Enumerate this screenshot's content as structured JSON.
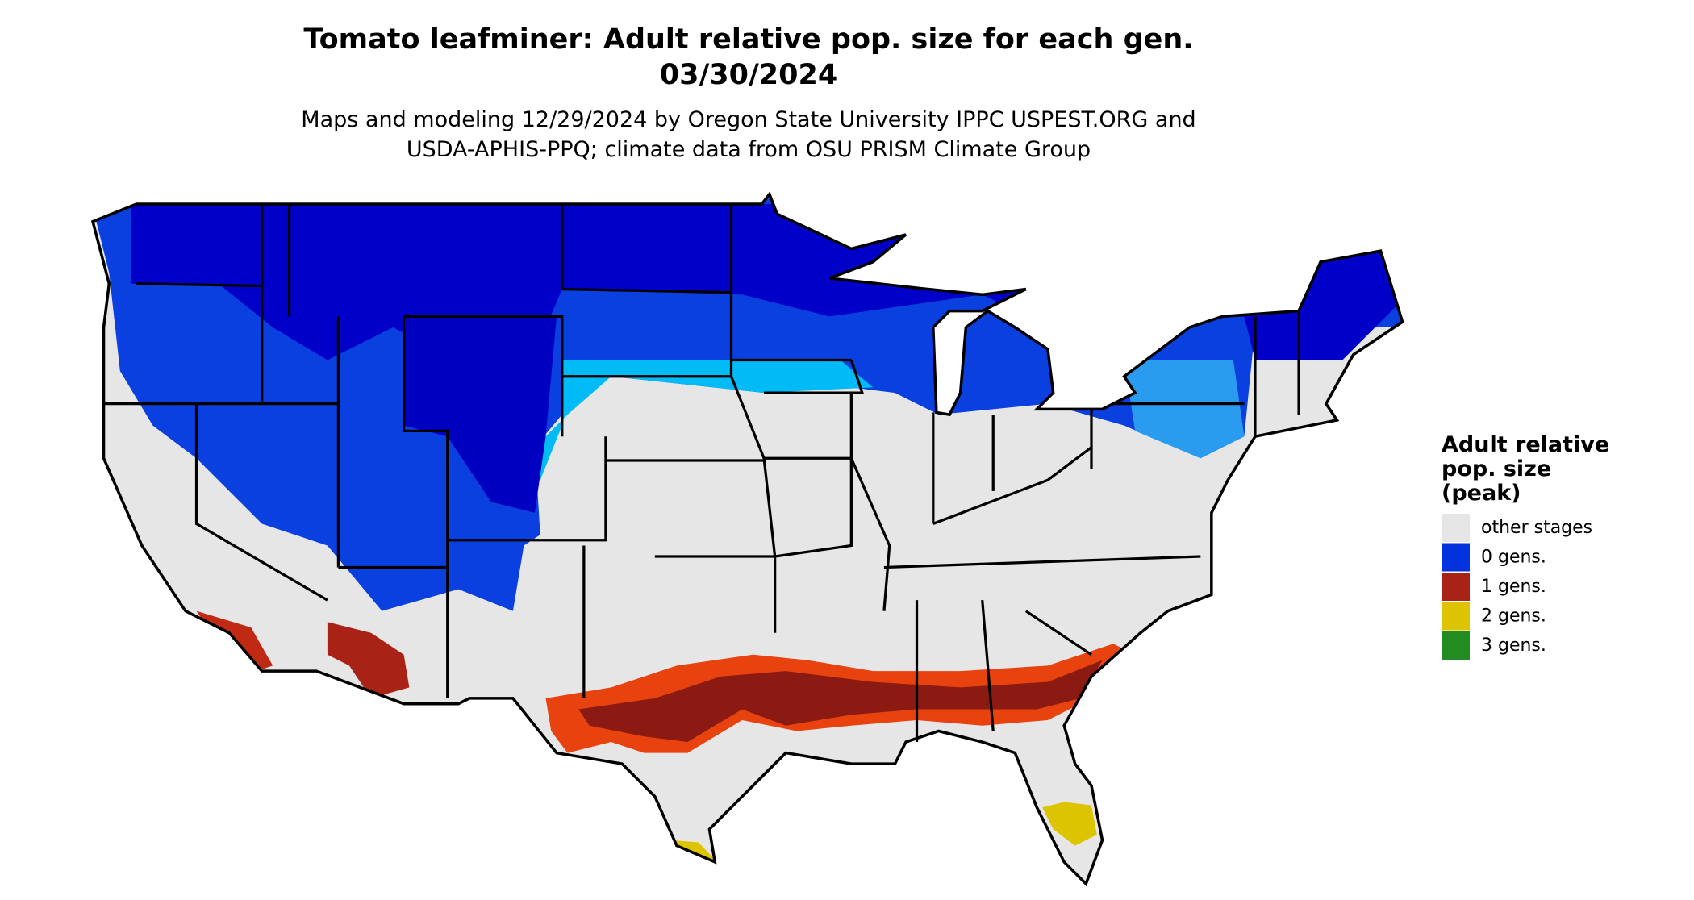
{
  "header": {
    "title": [
      "Tomato leafminer: Adult relative pop. size for each gen.",
      "03/30/2024"
    ],
    "subtitle": [
      "Maps and modeling 12/29/2024 by Oregon State University IPPC USPEST.ORG and",
      "USDA-APHIS-PPQ; climate data from OSU PRISM Climate Group"
    ]
  },
  "legend": {
    "title": [
      "Adult relative",
      "pop. size",
      "(peak)"
    ],
    "items": [
      {
        "label": "other stages",
        "color": "#e6e6e6"
      },
      {
        "label": "0 gens.",
        "color": "#0033dd"
      },
      {
        "label": "1 gens.",
        "color": "#a82215"
      },
      {
        "label": "2 gens.",
        "color": "#ddc400"
      },
      {
        "label": "3 gens.",
        "color": "#228b22"
      }
    ]
  }
}
